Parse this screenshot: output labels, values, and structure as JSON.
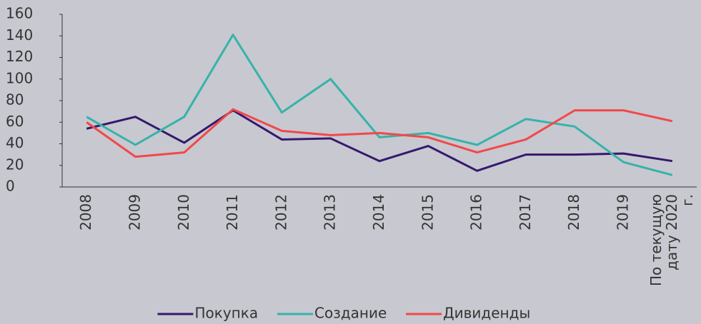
{
  "chart_data": {
    "type": "line",
    "categories": [
      "2008",
      "2009",
      "2010",
      "2011",
      "2012",
      "2013",
      "2014",
      "2015",
      "2016",
      "2017",
      "2018",
      "2019",
      "По текущую дату 2020 г."
    ],
    "series": [
      {
        "name": "Покупка",
        "color": "#35186e",
        "values": [
          54,
          65,
          41,
          71,
          44,
          45,
          24,
          38,
          15,
          30,
          30,
          31,
          24
        ]
      },
      {
        "name": "Создание",
        "color": "#35b3a9",
        "values": [
          65,
          39,
          65,
          141,
          69,
          100,
          46,
          50,
          39,
          63,
          56,
          23,
          11
        ]
      },
      {
        "name": "Дивиденды",
        "color": "#f2484a",
        "values": [
          60,
          28,
          32,
          72,
          52,
          48,
          50,
          46,
          32,
          44,
          71,
          71,
          61
        ]
      }
    ],
    "ylim": [
      0,
      160
    ],
    "yticks": [
      0,
      20,
      40,
      60,
      80,
      100,
      120,
      140,
      160
    ],
    "grid": false,
    "legend": "bottom"
  }
}
